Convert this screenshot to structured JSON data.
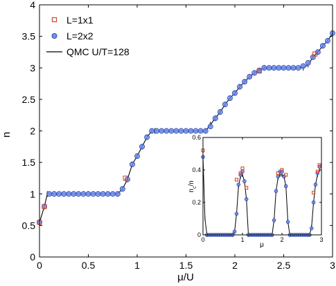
{
  "chart_data": {
    "main": {
      "type": "scatter",
      "xlabel": "μ/U",
      "ylabel": "n",
      "xlim": [
        0,
        3
      ],
      "ylim": [
        0,
        4
      ],
      "xticks": [
        0,
        0.5,
        1,
        1.5,
        2,
        2.5,
        3
      ],
      "yticks": [
        0,
        0.5,
        1,
        1.5,
        2,
        2.5,
        3,
        3.5,
        4
      ],
      "xtick_labels": [
        "0",
        "0.5",
        "1",
        "1.5",
        "2",
        "2.5",
        "3"
      ],
      "ytick_labels": [
        "0",
        "0.5",
        "1",
        "1.5",
        "2",
        "2.5",
        "3",
        "3.5",
        "4"
      ],
      "legend_position": "top-left",
      "series": [
        {
          "name": "L=1x1",
          "marker": "square",
          "color": "#d4452b",
          "x": [
            0.0,
            0.05,
            0.88,
            2.25,
            2.82
          ],
          "y": [
            0.55,
            0.8,
            1.25,
            2.95,
            3.22
          ]
        },
        {
          "name": "L=2x2",
          "marker": "circle",
          "color": "#4a6fd8",
          "x": [
            0.0,
            0.05,
            0.1,
            0.15,
            0.2,
            0.25,
            0.3,
            0.35,
            0.4,
            0.45,
            0.5,
            0.55,
            0.6,
            0.65,
            0.7,
            0.75,
            0.8,
            0.85,
            0.9,
            0.95,
            1.0,
            1.05,
            1.1,
            1.15,
            1.2,
            1.25,
            1.3,
            1.35,
            1.4,
            1.45,
            1.5,
            1.55,
            1.6,
            1.65,
            1.7,
            1.75,
            1.8,
            1.85,
            1.9,
            1.95,
            2.0,
            2.05,
            2.1,
            2.15,
            2.2,
            2.25,
            2.3,
            2.35,
            2.4,
            2.45,
            2.5,
            2.55,
            2.6,
            2.65,
            2.7,
            2.75,
            2.8,
            2.85,
            2.9,
            2.95,
            3.0
          ],
          "y": [
            0.55,
            0.8,
            1.0,
            1.0,
            1.0,
            1.0,
            1.0,
            1.0,
            1.0,
            1.0,
            1.0,
            1.0,
            1.0,
            1.0,
            1.0,
            1.0,
            1.0,
            1.08,
            1.23,
            1.47,
            1.6,
            1.75,
            1.9,
            2.0,
            2.0,
            2.0,
            2.0,
            2.0,
            2.0,
            2.0,
            2.0,
            2.0,
            2.0,
            2.0,
            2.0,
            2.07,
            2.2,
            2.3,
            2.42,
            2.52,
            2.6,
            2.7,
            2.78,
            2.86,
            2.92,
            2.96,
            3.0,
            3.0,
            3.0,
            3.0,
            3.0,
            3.0,
            3.0,
            3.0,
            3.03,
            3.08,
            3.17,
            3.25,
            3.35,
            3.43,
            3.55
          ]
        },
        {
          "name": "QMC U/T=128",
          "marker": "line",
          "color": "#000000",
          "x": [
            0.0,
            0.05,
            0.08,
            0.8,
            0.85,
            0.9,
            0.95,
            1.0,
            1.05,
            1.1,
            1.15,
            1.18,
            1.7,
            1.75,
            1.8,
            1.85,
            1.9,
            1.95,
            2.0,
            2.05,
            2.1,
            2.15,
            2.2,
            2.25,
            2.3,
            2.7,
            2.75,
            2.8,
            2.85,
            2.9,
            2.95,
            3.0
          ],
          "y": [
            0.55,
            0.8,
            1.0,
            1.0,
            1.08,
            1.23,
            1.47,
            1.6,
            1.75,
            1.9,
            2.0,
            2.0,
            2.0,
            2.1,
            2.2,
            2.3,
            2.42,
            2.52,
            2.6,
            2.7,
            2.78,
            2.86,
            2.92,
            2.96,
            3.0,
            3.0,
            3.05,
            3.17,
            3.25,
            3.35,
            3.43,
            3.55
          ]
        }
      ]
    },
    "inset": {
      "type": "scatter",
      "xlabel": "μ",
      "ylabel": "n_c/n",
      "ylabel_main": "n",
      "ylabel_sub": "c",
      "ylabel_tail": "/n",
      "xlim": [
        0,
        3
      ],
      "ylim": [
        0,
        0.6
      ],
      "xticks": [
        0,
        1,
        2,
        3
      ],
      "yticks": [
        0,
        0.2,
        0.4,
        0.6
      ],
      "xtick_labels": [
        "0",
        "1",
        "2",
        "3"
      ],
      "ytick_labels": [
        "0",
        "0.2",
        "0.4",
        "0.6"
      ],
      "series": [
        {
          "name": "L=1x1",
          "marker": "square",
          "color": "#d4452b",
          "x": [
            0.0,
            0.85,
            0.95,
            1.0,
            1.1,
            1.9,
            2.0,
            2.1,
            2.8,
            2.9,
            2.95
          ],
          "y": [
            0.52,
            0.34,
            0.38,
            0.41,
            0.29,
            0.38,
            0.4,
            0.37,
            0.26,
            0.39,
            0.43
          ]
        },
        {
          "name": "L=2x2",
          "marker": "circle",
          "color": "#4a6fd8",
          "x": [
            0.0,
            0.1,
            0.15,
            0.2,
            0.25,
            0.3,
            0.35,
            0.4,
            0.45,
            0.5,
            0.55,
            0.6,
            0.65,
            0.7,
            0.75,
            0.8,
            0.85,
            0.9,
            0.95,
            1.0,
            1.05,
            1.1,
            1.15,
            1.2,
            1.25,
            1.3,
            1.35,
            1.4,
            1.45,
            1.5,
            1.55,
            1.6,
            1.65,
            1.7,
            1.75,
            1.8,
            1.85,
            1.9,
            1.95,
            2.0,
            2.05,
            2.1,
            2.15,
            2.2,
            2.25,
            2.3,
            2.35,
            2.4,
            2.45,
            2.5,
            2.55,
            2.6,
            2.65,
            2.7,
            2.75,
            2.8,
            2.85,
            2.9,
            2.95
          ],
          "y": [
            0.48,
            0.0,
            0.0,
            0.0,
            0.0,
            0.0,
            0.0,
            0.0,
            0.0,
            0.0,
            0.0,
            0.0,
            0.0,
            0.0,
            0.0,
            0.02,
            0.13,
            0.31,
            0.37,
            0.39,
            0.33,
            0.22,
            0.0,
            0.0,
            0.0,
            0.0,
            0.0,
            0.0,
            0.0,
            0.0,
            0.0,
            0.0,
            0.0,
            0.0,
            0.0,
            0.09,
            0.27,
            0.36,
            0.39,
            0.39,
            0.36,
            0.3,
            0.08,
            0.0,
            0.0,
            0.0,
            0.0,
            0.0,
            0.0,
            0.0,
            0.0,
            0.0,
            0.0,
            0.0,
            0.04,
            0.2,
            0.31,
            0.38,
            0.42
          ]
        },
        {
          "name": "QMC U/T=128",
          "marker": "line",
          "color": "#000000",
          "x": [
            0.0,
            0.05,
            0.1,
            0.75,
            0.8,
            0.85,
            0.9,
            0.95,
            1.0,
            1.05,
            1.1,
            1.15,
            1.75,
            1.8,
            1.85,
            1.9,
            1.95,
            2.0,
            2.05,
            2.1,
            2.15,
            2.2,
            2.7,
            2.75,
            2.8,
            2.85,
            2.9,
            2.95
          ],
          "y": [
            0.48,
            0.1,
            0.0,
            0.0,
            0.02,
            0.13,
            0.3,
            0.36,
            0.37,
            0.33,
            0.22,
            0.0,
            0.0,
            0.09,
            0.27,
            0.35,
            0.37,
            0.37,
            0.36,
            0.3,
            0.08,
            0.0,
            0.0,
            0.05,
            0.2,
            0.31,
            0.37,
            0.4
          ]
        }
      ]
    }
  }
}
